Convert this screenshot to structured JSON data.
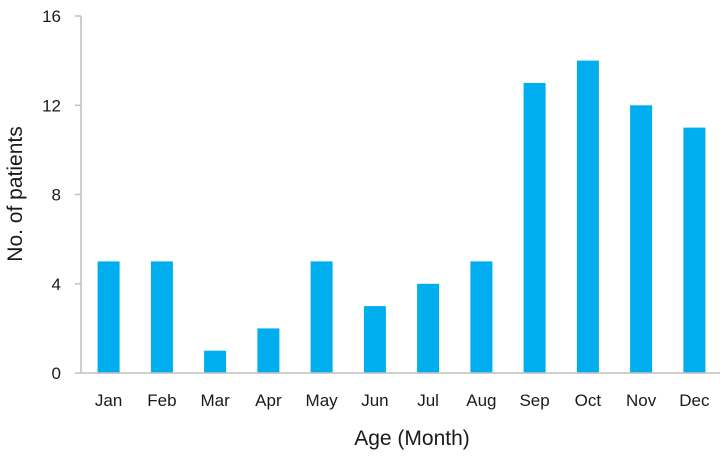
{
  "chart_data": {
    "type": "bar",
    "title": "",
    "xlabel": "Age (Month)",
    "ylabel": "No. of patients",
    "categories": [
      "Jan",
      "Feb",
      "Mar",
      "Apr",
      "May",
      "Jun",
      "Jul",
      "Aug",
      "Sep",
      "Oct",
      "Nov",
      "Dec"
    ],
    "values": [
      5,
      5,
      1,
      2,
      5,
      3,
      4,
      5,
      13,
      14,
      12,
      11
    ],
    "ylim": [
      0,
      16
    ],
    "yticks": [
      0,
      4,
      8,
      12,
      16
    ],
    "grid": false,
    "bar_color": "#00aeef"
  }
}
